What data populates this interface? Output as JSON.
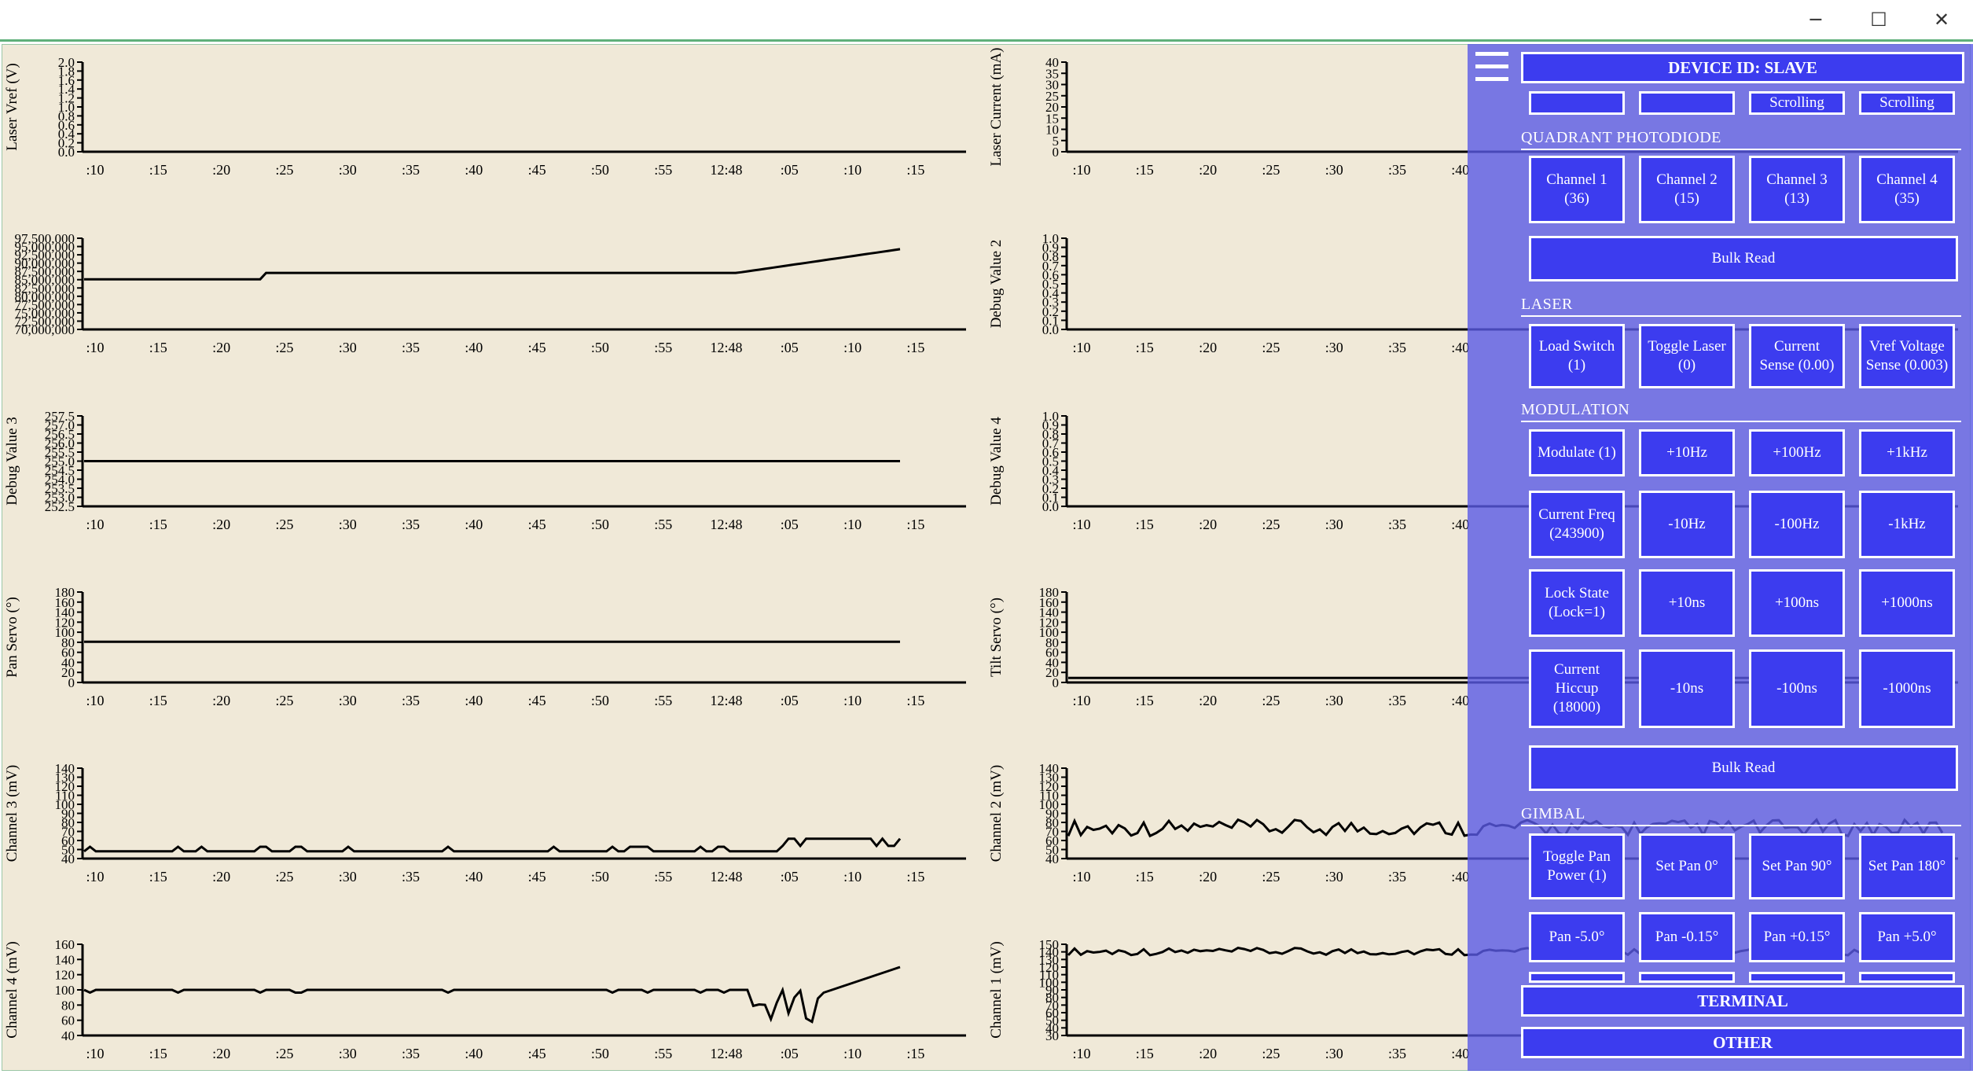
{
  "window": {
    "minimize_glyph": "─",
    "maximize_glyph": "☐",
    "close_glyph": "✕"
  },
  "charts": [
    {
      "ylabel": "Laser Vref (V)",
      "ticks": [
        "2.0",
        "1.8",
        "1.6",
        "1.4",
        "1.2",
        "1.0",
        "0.8",
        "0.6",
        "0.4",
        "0.2",
        "0.0"
      ]
    },
    {
      "ylabel": "Laser Current (mA)",
      "ticks": [
        "40",
        "35",
        "30",
        "25",
        "20",
        "15",
        "10",
        "5",
        "0"
      ]
    },
    {
      "ylabel": "",
      "ticks": [
        "97,500,000",
        "95,000,000",
        "92,500,000",
        "90,000,000",
        "87,500,000",
        "85,000,000",
        "82,500,000",
        "80,000,000",
        "77,500,000",
        "75,000,000",
        "72,500,000",
        "70,000,000"
      ]
    },
    {
      "ylabel": "Debug Value 2",
      "ticks": [
        "1.0",
        "0.9",
        "0.8",
        "0.7",
        "0.6",
        "0.5",
        "0.4",
        "0.3",
        "0.2",
        "0.1",
        "0.0"
      ]
    },
    {
      "ylabel": "Debug Value 3",
      "ticks": [
        "257.5",
        "257.0",
        "256.5",
        "256.0",
        "255.5",
        "255.0",
        "254.5",
        "254.0",
        "253.5",
        "253.0",
        "252.5"
      ]
    },
    {
      "ylabel": "Debug Value 4",
      "ticks": [
        "1.0",
        "0.9",
        "0.8",
        "0.7",
        "0.6",
        "0.5",
        "0.4",
        "0.3",
        "0.2",
        "0.1",
        "0.0"
      ]
    },
    {
      "ylabel": "Pan Servo (°)",
      "ticks": [
        "180",
        "160",
        "140",
        "120",
        "100",
        "80",
        "60",
        "40",
        "20",
        "0"
      ]
    },
    {
      "ylabel": "Tilt Servo (°)",
      "ticks": [
        "180",
        "160",
        "140",
        "120",
        "100",
        "80",
        "60",
        "40",
        "20",
        "0"
      ]
    },
    {
      "ylabel": "Channel 3 (mV)",
      "ticks": [
        "140",
        "130",
        "120",
        "110",
        "100",
        "90",
        "80",
        "70",
        "60",
        "50",
        "40"
      ]
    },
    {
      "ylabel": "Channel 2 (mV)",
      "ticks": [
        "140",
        "130",
        "120",
        "110",
        "100",
        "90",
        "80",
        "70",
        "60",
        "50",
        "40"
      ]
    },
    {
      "ylabel": "Channel 4 (mV)",
      "ticks": [
        "160",
        "140",
        "120",
        "100",
        "80",
        "60",
        "40"
      ]
    },
    {
      "ylabel": "Channel 1 (mV)",
      "ticks": [
        "150",
        "140",
        "130",
        "120",
        "110",
        "100",
        "90",
        "80",
        "70",
        "60",
        "50",
        "40",
        "30"
      ]
    }
  ],
  "x_ticks": [
    ":10",
    ":15",
    ":20",
    ":25",
    ":30",
    ":35",
    ":40",
    ":45",
    ":50",
    ":55",
    "12:48",
    ":05",
    ":10",
    ":15"
  ],
  "x_ticks_right": [
    ":10",
    ":15",
    ":20",
    ":25",
    ":30",
    ":35",
    ":40",
    ":45",
    ":50",
    ":55",
    "12:48",
    ":05",
    ":10",
    ":15"
  ],
  "colors": {
    "plot_bg": "#f0e9d8",
    "panel": "#5a5ae6",
    "button": "#3c3cef",
    "line": "#000000"
  },
  "panel": {
    "device_id": "DEVICE ID: SLAVE",
    "scroll_partials": [
      "",
      "",
      "Scrolling",
      "Scrolling"
    ],
    "sections": {
      "quadrant": "QUADRANT PHOTODIODE",
      "laser": "LASER",
      "modulation": "MODULATION",
      "gimbal": "GIMBAL"
    },
    "quadrant_buttons": [
      "Channel 1\n(36)",
      "Channel 2\n(15)",
      "Channel 3\n(13)",
      "Channel 4\n(35)"
    ],
    "bulk_read": "Bulk Read",
    "laser_buttons": [
      "Load Switch\n(1)",
      "Toggle Laser\n(0)",
      "Current\nSense (0.00)",
      "Vref Voltage\nSense (0.003)"
    ],
    "mod_row1": [
      "Modulate (1)",
      "+10Hz",
      "+100Hz",
      "+1kHz"
    ],
    "mod_row2": [
      "Current Freq\n(243900)",
      "-10Hz",
      "-100Hz",
      "-1kHz"
    ],
    "mod_row3": [
      "Lock State\n(Lock=1)",
      "+10ns",
      "+100ns",
      "+1000ns"
    ],
    "mod_row4": [
      "Current\nHiccup\n(18000)",
      "-10ns",
      "-100ns",
      "-1000ns"
    ],
    "gimbal_row1": [
      "Toggle Pan\nPower (1)",
      "Set Pan 0°",
      "Set Pan 90°",
      "Set Pan 180°"
    ],
    "gimbal_row2": [
      "Pan -5.0°",
      "Pan -0.15°",
      "Pan +0.15°",
      "Pan +5.0°"
    ],
    "terminal": "TERMINAL",
    "other": "OTHER"
  }
}
